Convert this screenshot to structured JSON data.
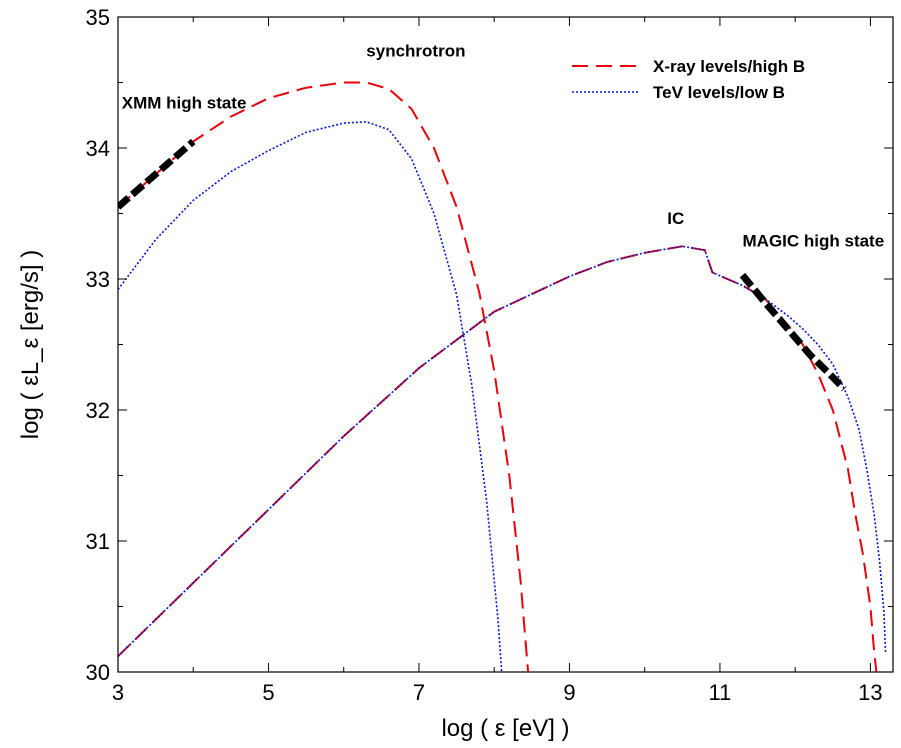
{
  "chart_data": {
    "type": "line",
    "title": "",
    "xlabel": "log ( ε [eV] )",
    "ylabel": "log ( εL_ε [erg/s] )",
    "xlim": [
      3,
      13.3
    ],
    "ylim": [
      30,
      35
    ],
    "xticks": [
      3,
      5,
      7,
      9,
      11,
      13
    ],
    "yticks": [
      30,
      31,
      32,
      33,
      34,
      35
    ],
    "grid": false,
    "legend_position": "top-right",
    "series": [
      {
        "name": "X-ray levels/high B",
        "color": "#e8000b",
        "style": "dashed",
        "segments": [
          [
            [
              3.0,
              33.55
            ],
            [
              3.5,
              33.8
            ],
            [
              4.0,
              34.05
            ],
            [
              4.5,
              34.24
            ],
            [
              5.0,
              34.38
            ],
            [
              5.5,
              34.46
            ],
            [
              6.0,
              34.5
            ],
            [
              6.3,
              34.5
            ],
            [
              6.6,
              34.45
            ],
            [
              6.9,
              34.3
            ],
            [
              7.2,
              34.0
            ],
            [
              7.5,
              33.55
            ],
            [
              7.8,
              32.9
            ],
            [
              8.0,
              32.3
            ],
            [
              8.2,
              31.5
            ],
            [
              8.35,
              30.7
            ],
            [
              8.45,
              30.0
            ]
          ],
          [
            [
              3.0,
              30.12
            ],
            [
              4.0,
              30.68
            ],
            [
              5.0,
              31.24
            ],
            [
              6.0,
              31.8
            ],
            [
              7.0,
              32.32
            ],
            [
              8.0,
              32.75
            ],
            [
              9.0,
              33.02
            ],
            [
              9.5,
              33.13
            ],
            [
              10.0,
              33.2
            ],
            [
              10.5,
              33.25
            ],
            [
              10.8,
              33.22
            ],
            [
              10.9,
              33.05
            ],
            [
              11.3,
              32.95
            ],
            [
              11.6,
              32.85
            ],
            [
              11.9,
              32.65
            ],
            [
              12.1,
              32.5
            ],
            [
              12.3,
              32.28
            ],
            [
              12.5,
              32.0
            ],
            [
              12.7,
              31.55
            ],
            [
              12.8,
              31.2
            ],
            [
              12.9,
              30.9
            ],
            [
              13.0,
              30.5
            ],
            [
              13.05,
              30.15
            ],
            [
              13.08,
              30.0
            ]
          ]
        ]
      },
      {
        "name": "TeV levels/low B",
        "color": "#0018cc",
        "style": "dotted",
        "segments": [
          [
            [
              3.0,
              32.92
            ],
            [
              3.5,
              33.3
            ],
            [
              4.0,
              33.6
            ],
            [
              4.5,
              33.82
            ],
            [
              5.0,
              33.98
            ],
            [
              5.5,
              34.12
            ],
            [
              6.0,
              34.19
            ],
            [
              6.3,
              34.2
            ],
            [
              6.6,
              34.14
            ],
            [
              6.9,
              33.92
            ],
            [
              7.2,
              33.5
            ],
            [
              7.5,
              32.88
            ],
            [
              7.7,
              32.2
            ],
            [
              7.9,
              31.3
            ],
            [
              8.05,
              30.4
            ],
            [
              8.1,
              30.0
            ]
          ],
          [
            [
              3.0,
              30.12
            ],
            [
              4.0,
              30.68
            ],
            [
              5.0,
              31.24
            ],
            [
              6.0,
              31.8
            ],
            [
              7.0,
              32.32
            ],
            [
              8.0,
              32.75
            ],
            [
              9.0,
              33.02
            ],
            [
              9.5,
              33.13
            ],
            [
              10.0,
              33.2
            ],
            [
              10.5,
              33.25
            ],
            [
              10.8,
              33.22
            ],
            [
              10.9,
              33.05
            ],
            [
              11.3,
              32.95
            ],
            [
              11.6,
              32.85
            ],
            [
              11.9,
              32.72
            ],
            [
              12.1,
              32.62
            ],
            [
              12.3,
              32.5
            ],
            [
              12.5,
              32.35
            ],
            [
              12.7,
              32.1
            ],
            [
              12.85,
              31.85
            ],
            [
              12.95,
              31.55
            ],
            [
              13.05,
              31.2
            ],
            [
              13.12,
              30.85
            ],
            [
              13.18,
              30.45
            ],
            [
              13.2,
              30.15
            ]
          ]
        ]
      },
      {
        "name": "XMM high state",
        "color": "#000000",
        "style": "thick-dashed",
        "segments": [
          [
            [
              3.0,
              33.55
            ],
            [
              3.5,
              33.8
            ],
            [
              4.0,
              34.05
            ]
          ]
        ]
      },
      {
        "name": "MAGIC high state",
        "color": "#000000",
        "style": "thick-dashed",
        "segments": [
          [
            [
              11.3,
              33.03
            ],
            [
              11.6,
              32.82
            ],
            [
              11.9,
              32.62
            ],
            [
              12.2,
              32.42
            ],
            [
              12.45,
              32.28
            ],
            [
              12.65,
              32.16
            ]
          ]
        ]
      }
    ],
    "annotations": [
      {
        "text": "synchrotron",
        "x": 6.3,
        "y": 34.7
      },
      {
        "text": "XMM high state",
        "x": 3.05,
        "y": 34.3
      },
      {
        "text": "IC",
        "x": 10.3,
        "y": 33.42
      },
      {
        "text": "MAGIC high state",
        "x": 11.3,
        "y": 33.25
      }
    ],
    "legend": [
      {
        "label": "X-ray levels/high B",
        "color": "#e8000b",
        "style": "dashed"
      },
      {
        "label": "TeV levels/low B",
        "color": "#0018cc",
        "style": "dotted"
      }
    ]
  }
}
